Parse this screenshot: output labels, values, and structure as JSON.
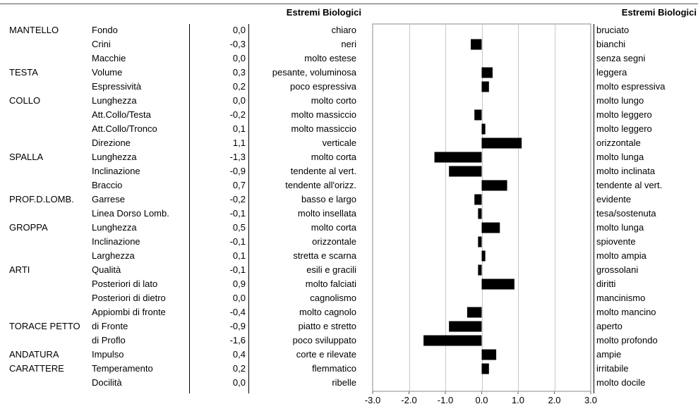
{
  "headers": {
    "left_extreme": "Estremi Biologici",
    "right_extreme": "Estremi Biologici"
  },
  "chart_data": {
    "type": "bar",
    "orientation": "horizontal",
    "xlim": [
      -3.0,
      3.0
    ],
    "xticks": [
      "-3.0",
      "-2.0",
      "-1.0",
      "0.0",
      "1.0",
      "2.0",
      "3.0"
    ],
    "grid": true,
    "rows": [
      {
        "group": "MANTELLO",
        "trait": "Fondo",
        "value": 0.0,
        "value_label": "0,0",
        "left": "chiaro",
        "right": "bruciato"
      },
      {
        "group": "",
        "trait": "Crini",
        "value": -0.3,
        "value_label": "-0,3",
        "left": "neri",
        "right": "bianchi"
      },
      {
        "group": "",
        "trait": "Macchie",
        "value": 0.0,
        "value_label": "0,0",
        "left": "molto estese",
        "right": "senza segni"
      },
      {
        "group": "TESTA",
        "trait": "Volume",
        "value": 0.3,
        "value_label": "0,3",
        "left": "pesante, voluminosa",
        "right": "leggera"
      },
      {
        "group": "",
        "trait": "Espressività",
        "value": 0.2,
        "value_label": "0,2",
        "left": "poco espressiva",
        "right": "molto espressiva"
      },
      {
        "group": "COLLO",
        "trait": "Lunghezza",
        "value": 0.0,
        "value_label": "0,0",
        "left": "molto corto",
        "right": "molto lungo"
      },
      {
        "group": "",
        "trait": "Att.Collo/Testa",
        "value": -0.2,
        "value_label": "-0,2",
        "left": "molto massiccio",
        "right": "molto leggero"
      },
      {
        "group": "",
        "trait": "Att.Collo/Tronco",
        "value": 0.1,
        "value_label": "0,1",
        "left": "molto massiccio",
        "right": "molto leggero"
      },
      {
        "group": "",
        "trait": "Direzione",
        "value": 1.1,
        "value_label": "1,1",
        "left": "verticale",
        "right": "orizzontale"
      },
      {
        "group": "SPALLA",
        "trait": "Lunghezza",
        "value": -1.3,
        "value_label": "-1,3",
        "left": "molto corta",
        "right": "molto lunga"
      },
      {
        "group": "",
        "trait": "Inclinazione",
        "value": -0.9,
        "value_label": "-0,9",
        "left": "tendente al vert.",
        "right": "molto inclinata"
      },
      {
        "group": "",
        "trait": "Braccio",
        "value": 0.7,
        "value_label": "0,7",
        "left": "tendente all'orizz.",
        "right": "tendente al vert."
      },
      {
        "group": "PROF.D.LOMB.",
        "trait": "Garrese",
        "value": -0.2,
        "value_label": "-0,2",
        "left": "basso e largo",
        "right": "evidente"
      },
      {
        "group": "",
        "trait": "Linea Dorso Lomb.",
        "value": -0.1,
        "value_label": "-0,1",
        "left": "molto insellata",
        "right": "tesa/sostenuta"
      },
      {
        "group": "GROPPA",
        "trait": "Lunghezza",
        "value": 0.5,
        "value_label": "0,5",
        "left": "molto corta",
        "right": "molto lunga"
      },
      {
        "group": "",
        "trait": "Inclinazione",
        "value": -0.1,
        "value_label": "-0,1",
        "left": "orizzontale",
        "right": "spiovente"
      },
      {
        "group": "",
        "trait": "Larghezza",
        "value": 0.1,
        "value_label": "0,1",
        "left": "stretta e scarna",
        "right": "molto ampia"
      },
      {
        "group": "ARTI",
        "trait": "Qualità",
        "value": -0.1,
        "value_label": "-0,1",
        "left": "esili e gracili",
        "right": "grossolani"
      },
      {
        "group": "",
        "trait": "Posteriori di lato",
        "value": 0.9,
        "value_label": "0,9",
        "left": "molto falciati",
        "right": "diritti"
      },
      {
        "group": "",
        "trait": "Posteriori di dietro",
        "value": 0.0,
        "value_label": "0,0",
        "left": "cagnolismo",
        "right": "mancinismo"
      },
      {
        "group": "",
        "trait": "Appiombi di fronte",
        "value": -0.4,
        "value_label": "-0,4",
        "left": "molto cagnolo",
        "right": "molto mancino"
      },
      {
        "group": "TORACE PETTO",
        "trait": "di Fronte",
        "value": -0.9,
        "value_label": "-0,9",
        "left": "piatto e stretto",
        "right": "aperto"
      },
      {
        "group": "",
        "trait": "di Proflo",
        "value": -1.6,
        "value_label": "-1,6",
        "left": "poco sviluppato",
        "right": "molto profondo"
      },
      {
        "group": "ANDATURA",
        "trait": "Impulso",
        "value": 0.4,
        "value_label": "0,4",
        "left": "corte e rilevate",
        "right": "ampie"
      },
      {
        "group": "CARATTERE",
        "trait": "Temperamento",
        "value": 0.2,
        "value_label": "0,2",
        "left": "flemmatico",
        "right": "irritabile"
      },
      {
        "group": "",
        "trait": "Docilità",
        "value": 0.0,
        "value_label": "0,0",
        "left": "ribelle",
        "right": "molto docile"
      }
    ]
  }
}
